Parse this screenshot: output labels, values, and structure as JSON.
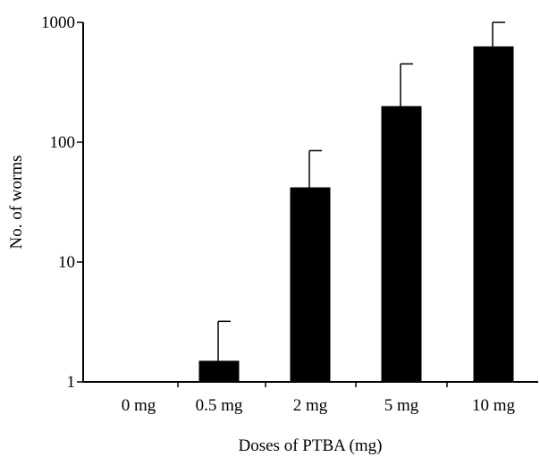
{
  "chart_data": {
    "type": "bar",
    "title": "",
    "xlabel": "Doses of PTBA (mg)",
    "ylabel": "No. of worms",
    "yscale": "log",
    "ylim": [
      1,
      1000
    ],
    "yticks": [
      1,
      10,
      100,
      1000
    ],
    "ytick_labels": [
      "1",
      "10",
      "100",
      "1000"
    ],
    "categories": [
      "0 mg",
      "0.5 mg",
      "2 mg",
      "5 mg",
      "10 mg"
    ],
    "values": [
      1,
      1.5,
      42,
      200,
      630
    ],
    "error_upper": [
      1,
      3.2,
      85,
      450,
      1000
    ],
    "bar_color": "#000000",
    "grid": false,
    "legend": "none"
  }
}
